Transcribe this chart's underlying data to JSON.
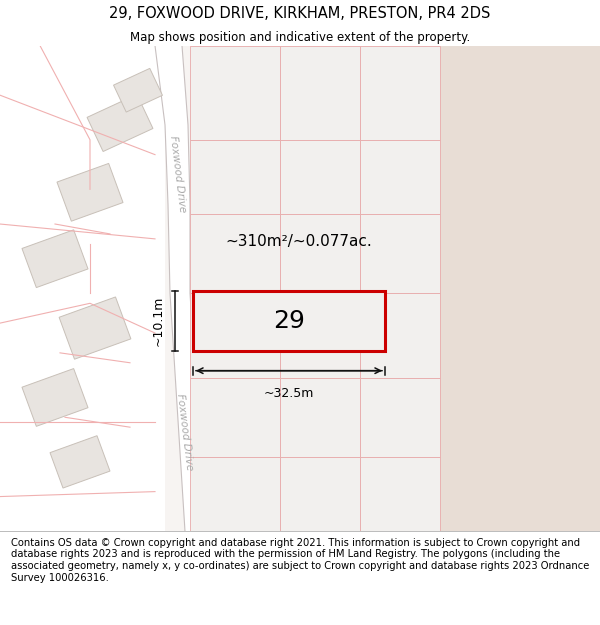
{
  "title": "29, FOXWOOD DRIVE, KIRKHAM, PRESTON, PR4 2DS",
  "subtitle": "Map shows position and indicative extent of the property.",
  "footer": "Contains OS data © Crown copyright and database right 2021. This information is subject to Crown copyright and database rights 2023 and is reproduced with the permission of HM Land Registry. The polygons (including the associated geometry, namely x, y co-ordinates) are subject to Crown copyright and database rights 2023 Ordnance Survey 100026316.",
  "map_bg": "#f7f4f2",
  "road_surface": "#ffffff",
  "grid_fill": "#f2f0ee",
  "grid_edge": "#e8aaaa",
  "right_fill": "#e8ddd5",
  "left_fill": "#e8e4e0",
  "left_edge": "#c8c0b8",
  "property_fill": "#f2f0ee",
  "property_edge": "#cc0000",
  "road_edge": "#c8c0c0",
  "dim_color": "#111111",
  "street_color": "#aaaaaa",
  "area_text": "~310m²/~0.077ac.",
  "number_text": "29",
  "width_label": "~32.5m",
  "height_label": "~10.1m",
  "street_name_upper": "Foxwood Drive",
  "street_name_lower": "Foxwood Drive",
  "footer_fontsize": 7.2,
  "title_fontsize": 10.5,
  "subtitle_fontsize": 8.5
}
